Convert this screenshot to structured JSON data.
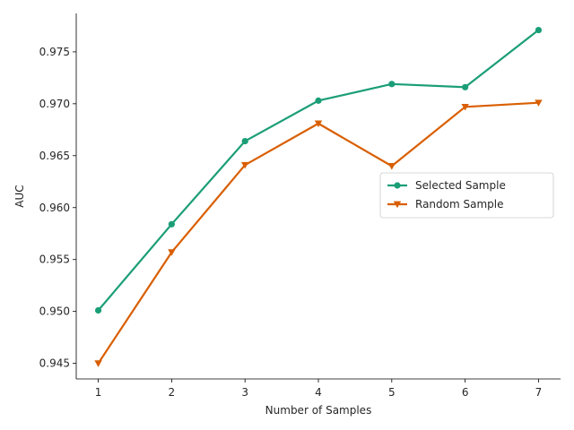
{
  "chart_data": {
    "type": "line",
    "title": "",
    "xlabel": "Number of Samples",
    "ylabel": "AUC",
    "x": [
      1,
      2,
      3,
      4,
      5,
      6,
      7
    ],
    "xticks": [
      "1",
      "2",
      "3",
      "4",
      "5",
      "6",
      "7"
    ],
    "xlim": [
      0.7,
      7.3
    ],
    "yticks": [
      "0.945",
      "0.950",
      "0.955",
      "0.960",
      "0.965",
      "0.970",
      "0.975"
    ],
    "ylim": [
      0.9435,
      0.9787
    ],
    "grid": false,
    "legend_position": "center-right",
    "series": [
      {
        "name": "Selected Sample",
        "values": [
          0.9501,
          0.9584,
          0.9664,
          0.9703,
          0.9719,
          0.9716,
          0.9771
        ],
        "color": "#1b9e77",
        "marker": "circle"
      },
      {
        "name": "Random Sample",
        "values": [
          0.945,
          0.9557,
          0.9641,
          0.9681,
          0.964,
          0.9697,
          0.9701
        ],
        "color": "#d95f02",
        "marker": "triangle-down"
      }
    ]
  }
}
